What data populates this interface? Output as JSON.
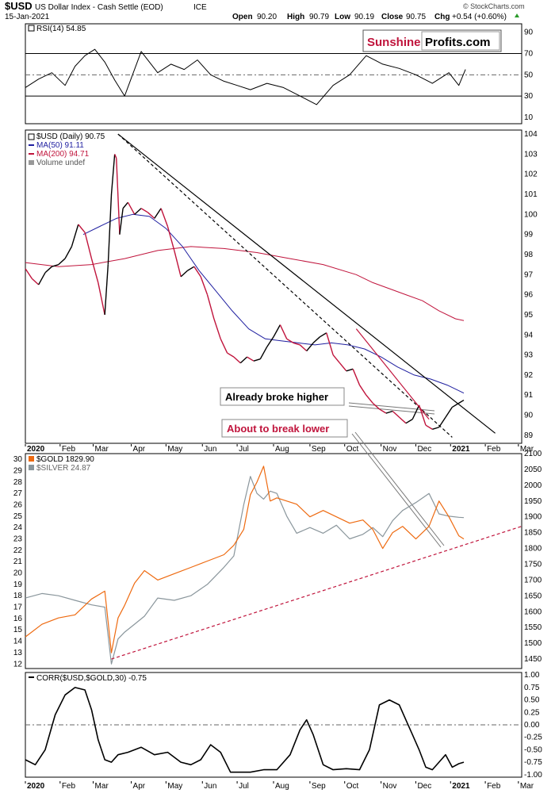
{
  "header": {
    "symbol": "$USD",
    "name": "US Dollar Index - Cash Settle (EOD)",
    "exchange": "ICE",
    "date": "15-Jan-2021",
    "open_label": "Open",
    "open": "90.20",
    "high_label": "High",
    "high": "90.79",
    "low_label": "Low",
    "low": "90.19",
    "close_label": "Close",
    "close": "90.75",
    "chg_label": "Chg",
    "chg": "+0.54 (+0.60%)",
    "credit": "© StockCharts.com"
  },
  "logo": {
    "word1": "Sunshine",
    "word2": "Profits.com",
    "color1": "#c0143c"
  },
  "colors": {
    "price_up": "#000000",
    "price_down": "#c0143c",
    "ma50": "#1f1fa0",
    "ma200": "#c0143c",
    "gold": "#ee6a10",
    "silver": "#8a969c",
    "rsi": "#000000",
    "corr": "#000000",
    "rsi_overbought_fill": "#4f7f4f",
    "rsi_oversold_fill": "#9a5a5a",
    "callout_broke": "#000000",
    "callout_break": "#c0143c"
  },
  "x_axis": {
    "labels": [
      "2020",
      "Feb",
      "Mar",
      "Apr",
      "May",
      "Jun",
      "Jul",
      "Aug",
      "Sep",
      "Oct",
      "Nov",
      "Dec",
      "2021",
      "Feb",
      "Mar"
    ],
    "bold": [
      "2020",
      "2021"
    ]
  },
  "annotations": {
    "broke_higher": "Already broke higher",
    "break_lower": "About to break lower"
  },
  "chart_data": [
    {
      "panel": "RSI",
      "type": "line",
      "legend": "RSI(14) 54.85",
      "y_ticks": [
        10,
        30,
        50,
        70,
        90
      ],
      "ylim": [
        4,
        98
      ],
      "reference_lines": [
        30,
        50,
        70
      ],
      "x": [
        0,
        8,
        16,
        24,
        30,
        36,
        42,
        48,
        54,
        60,
        70,
        80,
        88,
        96,
        104,
        112,
        120,
        128,
        136,
        146,
        156,
        166,
        176,
        186,
        196,
        206,
        216,
        226,
        236,
        246,
        256,
        262,
        266
      ],
      "values": [
        38,
        46,
        52,
        40,
        58,
        68,
        74,
        62,
        45,
        30,
        72,
        52,
        60,
        55,
        64,
        50,
        44,
        40,
        36,
        42,
        38,
        30,
        22,
        40,
        50,
        68,
        60,
        56,
        50,
        42,
        52,
        40,
        55
      ]
    },
    {
      "panel": "USD",
      "type": "line",
      "legend": [
        "$USD (Daily) 90.75",
        "MA(50) 91.11",
        "MA(200) 94.71",
        "Volume undef"
      ],
      "y_ticks": [
        89,
        90,
        91,
        92,
        93,
        94,
        95,
        96,
        97,
        98,
        99,
        100,
        101,
        102,
        103,
        104
      ],
      "ylim": [
        88.6,
        104.2
      ],
      "series": [
        {
          "name": "$USD (Daily)",
          "x": [
            0,
            4,
            8,
            12,
            16,
            20,
            24,
            28,
            32,
            36,
            40,
            44,
            48,
            50,
            52,
            54,
            55,
            57,
            59,
            62,
            66,
            70,
            74,
            78,
            82,
            86,
            90,
            94,
            98,
            102,
            106,
            110,
            114,
            118,
            122,
            126,
            130,
            134,
            138,
            142,
            146,
            150,
            154,
            158,
            162,
            166,
            170,
            174,
            178,
            182,
            186,
            190,
            194,
            198,
            202,
            206,
            210,
            214,
            218,
            222,
            226,
            230,
            234,
            238,
            242,
            246,
            250,
            254,
            258,
            262,
            265
          ],
          "values": [
            97.3,
            96.8,
            96.5,
            97.1,
            97.4,
            97.5,
            97.8,
            98.4,
            99.5,
            99.1,
            97.8,
            96.6,
            95.0,
            97.5,
            101.0,
            103.0,
            102.8,
            99.0,
            100.3,
            100.6,
            100.0,
            100.3,
            100.1,
            99.8,
            100.3,
            99.4,
            98.2,
            96.9,
            97.2,
            97.4,
            96.9,
            96.0,
            94.8,
            93.8,
            93.1,
            92.9,
            92.6,
            92.9,
            92.7,
            92.8,
            93.4,
            93.9,
            94.5,
            93.8,
            93.6,
            93.5,
            93.2,
            93.6,
            93.9,
            94.1,
            93.0,
            92.6,
            92.2,
            92.3,
            91.5,
            91.0,
            90.6,
            90.3,
            90.1,
            90.2,
            89.9,
            89.6,
            89.8,
            90.5,
            89.5,
            89.3,
            89.4,
            89.9,
            90.4,
            90.6,
            90.75
          ]
        },
        {
          "name": "MA(50)",
          "x": [
            35,
            45,
            55,
            65,
            75,
            85,
            95,
            105,
            115,
            125,
            135,
            145,
            155,
            165,
            175,
            185,
            195,
            205,
            215,
            225,
            235,
            245,
            255,
            265
          ],
          "values": [
            99.0,
            99.4,
            99.8,
            100.0,
            99.9,
            99.3,
            98.4,
            97.2,
            96.2,
            95.2,
            94.3,
            93.8,
            93.7,
            93.6,
            93.5,
            93.6,
            93.5,
            93.3,
            92.9,
            92.4,
            92.0,
            91.8,
            91.5,
            91.1
          ]
        },
        {
          "name": "MA(200)",
          "x": [
            0,
            20,
            40,
            60,
            80,
            100,
            120,
            140,
            160,
            180,
            200,
            210,
            220,
            230,
            240,
            250,
            260,
            265
          ],
          "values": [
            97.6,
            97.4,
            97.5,
            97.8,
            98.2,
            98.4,
            98.3,
            98.1,
            97.8,
            97.5,
            97.0,
            96.6,
            96.3,
            96.0,
            95.7,
            95.2,
            94.8,
            94.71
          ]
        }
      ],
      "trendlines": [
        {
          "style": "solid",
          "color": "#000000",
          "from": [
            56,
            104.0
          ],
          "to": [
            284,
            89.1
          ]
        },
        {
          "style": "dashed",
          "color": "#000000",
          "from": [
            56,
            104.0
          ],
          "to": [
            258,
            88.9
          ]
        },
        {
          "style": "solid",
          "color": "#c0143c",
          "from": [
            200,
            94.3
          ],
          "to": [
            244,
            89.8
          ]
        }
      ]
    },
    {
      "panel": "GOLD vs SILVER",
      "type": "line",
      "legend": [
        "$GOLD 1829.90",
        "$SILVER 24.87"
      ],
      "y_ticks_left": [
        12,
        13,
        14,
        15,
        16,
        17,
        18,
        19,
        20,
        21,
        22,
        23,
        24,
        25,
        26,
        27,
        28,
        29,
        30
      ],
      "y_ticks_right": [
        1450,
        1500,
        1550,
        1600,
        1650,
        1700,
        1750,
        1800,
        1850,
        1900,
        1950,
        2000,
        2050,
        2100
      ],
      "ylim_left": [
        11.6,
        30.5
      ],
      "ylim_right": [
        1420,
        2100
      ],
      "series": [
        {
          "name": "$GOLD",
          "axis": "right",
          "x": [
            0,
            10,
            20,
            30,
            40,
            48,
            52,
            56,
            60,
            66,
            72,
            80,
            90,
            100,
            110,
            120,
            126,
            132,
            136,
            140,
            144,
            148,
            152,
            158,
            164,
            172,
            180,
            188,
            196,
            204,
            210,
            216,
            222,
            228,
            236,
            244,
            250,
            256,
            262,
            265
          ],
          "values": [
            1520,
            1560,
            1580,
            1590,
            1640,
            1665,
            1470,
            1580,
            1620,
            1690,
            1730,
            1700,
            1720,
            1740,
            1760,
            1780,
            1810,
            1860,
            1970,
            2010,
            2060,
            1950,
            1960,
            1950,
            1940,
            1900,
            1920,
            1900,
            1880,
            1890,
            1860,
            1800,
            1850,
            1870,
            1830,
            1870,
            1950,
            1900,
            1840,
            1830
          ]
        },
        {
          "name": "$SILVER",
          "axis": "left",
          "x": [
            0,
            10,
            20,
            30,
            40,
            48,
            52,
            56,
            60,
            66,
            72,
            80,
            90,
            100,
            110,
            120,
            126,
            132,
            136,
            140,
            144,
            148,
            152,
            158,
            164,
            172,
            180,
            188,
            196,
            204,
            210,
            216,
            222,
            228,
            236,
            244,
            250,
            256,
            262,
            265
          ],
          "values": [
            17.8,
            18.2,
            18.0,
            17.6,
            17.2,
            17.0,
            12.0,
            14.2,
            14.8,
            15.5,
            16.2,
            17.8,
            17.6,
            18.0,
            19.0,
            20.5,
            21.5,
            26.0,
            28.5,
            27.0,
            26.5,
            27.2,
            27.0,
            25.0,
            23.5,
            24.0,
            23.5,
            24.2,
            23.0,
            23.4,
            24.0,
            23.2,
            24.6,
            25.5,
            26.2,
            27.0,
            25.2,
            25.0,
            24.9,
            24.87
          ]
        }
      ],
      "trendlines": [
        {
          "style": "dashed",
          "color": "#c0143c",
          "axis": "right",
          "from": [
            52,
            1450
          ],
          "to": [
            300,
            1870
          ]
        }
      ]
    },
    {
      "panel": "CORR",
      "type": "line",
      "legend": "CORR($USD,$GOLD,30) -0.75",
      "y_ticks": [
        "1.00",
        "0.75",
        "0.50",
        "0.25",
        "0.00",
        "-0.25",
        "-0.50",
        "-0.75",
        "-1.00"
      ],
      "ylim": [
        -1.05,
        1.05
      ],
      "reference_lines": [
        0.0
      ],
      "x": [
        0,
        6,
        12,
        18,
        24,
        30,
        36,
        40,
        44,
        48,
        52,
        56,
        62,
        70,
        78,
        86,
        94,
        100,
        106,
        112,
        118,
        124,
        130,
        136,
        144,
        152,
        160,
        166,
        170,
        174,
        180,
        186,
        194,
        202,
        208,
        214,
        220,
        226,
        230,
        234,
        238,
        242,
        246,
        250,
        254,
        258,
        262,
        265
      ],
      "values": [
        -0.7,
        -0.8,
        -0.5,
        0.2,
        0.6,
        0.75,
        0.7,
        0.3,
        -0.3,
        -0.7,
        -0.75,
        -0.6,
        -0.55,
        -0.45,
        -0.6,
        -0.55,
        -0.75,
        -0.8,
        -0.7,
        -0.4,
        -0.55,
        -0.95,
        -0.95,
        -0.95,
        -0.9,
        -0.9,
        -0.6,
        -0.1,
        0.1,
        -0.2,
        -0.8,
        -0.9,
        -0.88,
        -0.9,
        -0.5,
        0.4,
        0.5,
        0.4,
        0.1,
        -0.2,
        -0.5,
        -0.85,
        -0.9,
        -0.75,
        -0.6,
        -0.85,
        -0.78,
        -0.75
      ]
    }
  ]
}
